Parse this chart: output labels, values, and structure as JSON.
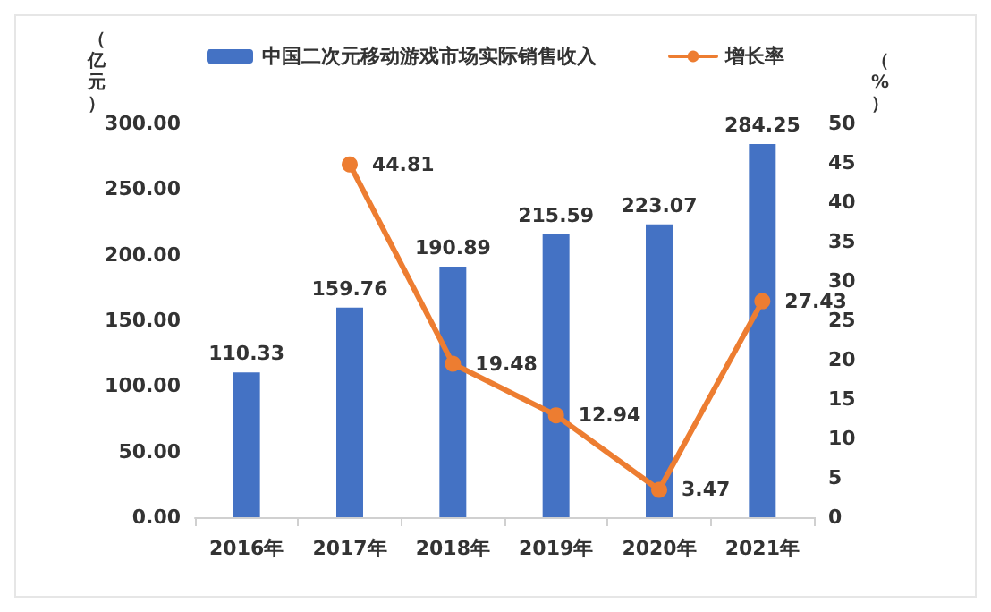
{
  "chart_data": {
    "type": "bar",
    "categories": [
      "2016年",
      "2017年",
      "2018年",
      "2019年",
      "2020年",
      "2021年"
    ],
    "series": [
      {
        "name": "中国二次元移动游戏市场实际销售收入",
        "color": "#4472c4",
        "values": [
          110.33,
          159.76,
          190.89,
          215.59,
          223.07,
          284.25
        ]
      },
      {
        "name": "增长率",
        "type": "line",
        "axis": "y2",
        "color": "#ed7d31",
        "values": [
          null,
          44.81,
          19.48,
          12.94,
          3.47,
          27.43
        ]
      }
    ],
    "ylabel": "（亿元）",
    "y2label": "（%）",
    "ylim": [
      0,
      300
    ],
    "yticks": [
      {
        "value": 0,
        "label": "0.00"
      },
      {
        "value": 50,
        "label": "50.00"
      },
      {
        "value": 100,
        "label": "100.00"
      },
      {
        "value": 150,
        "label": "150.00"
      },
      {
        "value": 200,
        "label": "200.00"
      },
      {
        "value": 250,
        "label": "250.00"
      },
      {
        "value": 300,
        "label": "300.00"
      }
    ],
    "y2lim": [
      0,
      50
    ],
    "y2ticks": [
      0,
      5,
      10,
      15,
      20,
      25,
      30,
      35,
      40,
      45,
      50
    ],
    "data_labels": true,
    "grid": false,
    "legend": "top",
    "marker": "circle",
    "line_style": "solid"
  }
}
